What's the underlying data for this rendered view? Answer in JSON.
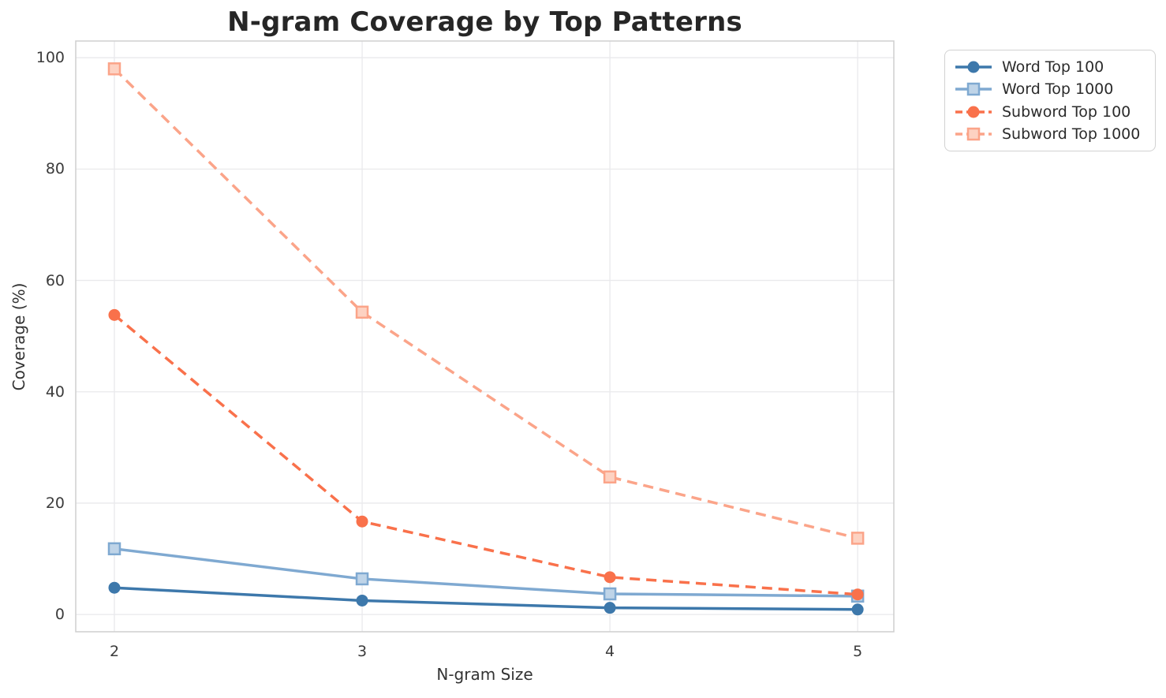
{
  "chart_data": {
    "type": "line",
    "title": "N-gram Coverage by Top Patterns",
    "xlabel": "N-gram Size",
    "ylabel": "Coverage (%)",
    "x": [
      2,
      3,
      4,
      5
    ],
    "xticks": [
      2,
      3,
      4,
      5
    ],
    "yticks": [
      0,
      20,
      40,
      60,
      80,
      100
    ],
    "xlim": [
      1.844,
      5.146
    ],
    "ylim": [
      -3.1,
      103.0
    ],
    "grid": true,
    "legend_position": "outside-upper-right",
    "series": [
      {
        "name": "Word Top 100",
        "values": [
          4.8,
          2.5,
          1.2,
          0.9
        ],
        "color": "#3d78ab",
        "marker": "circle",
        "marker_fill": "#3d78ab",
        "line_style": "solid"
      },
      {
        "name": "Word Top 1000",
        "values": [
          11.8,
          6.4,
          3.7,
          3.3
        ],
        "color": "#7fa9d1",
        "marker": "square",
        "marker_fill": "#bfd4e8",
        "line_style": "solid"
      },
      {
        "name": "Subword Top 100",
        "values": [
          53.8,
          16.7,
          6.7,
          3.6
        ],
        "color": "#f9714b",
        "marker": "circle",
        "marker_fill": "#f9714b",
        "line_style": "dashed"
      },
      {
        "name": "Subword Top 1000",
        "values": [
          98.0,
          54.3,
          24.7,
          13.7
        ],
        "color": "#fba489",
        "marker": "square",
        "marker_fill": "#fdd2c2",
        "line_style": "dashed"
      }
    ],
    "colors": {
      "background": "#ffffff",
      "gridline": "#e9e9ec",
      "axis_frame": "#cfcfcf",
      "tick_text": "#3b3b3b",
      "title_text": "#262626"
    }
  }
}
